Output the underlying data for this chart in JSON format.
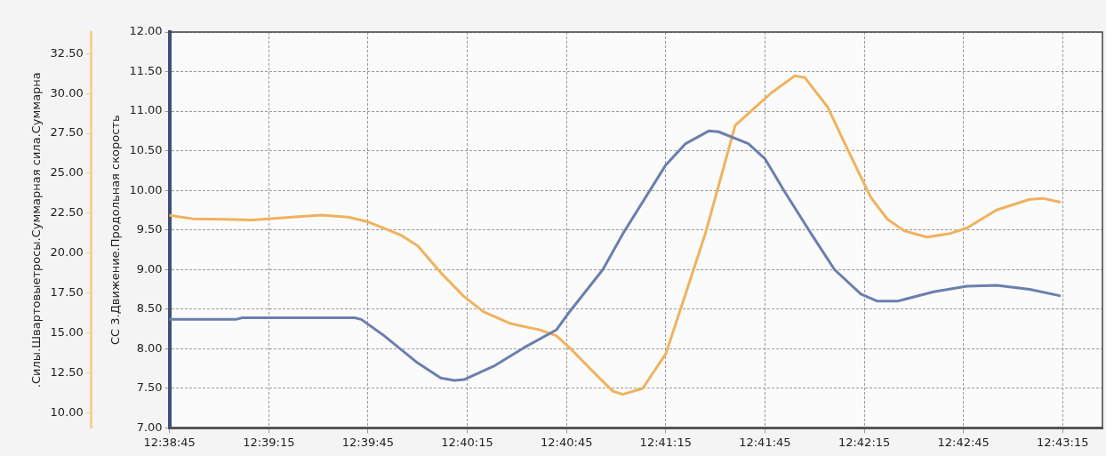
{
  "chart_data": {
    "type": "line",
    "ylabel": "СС 3.Движение.Продольная скорость",
    "y2label": ".Силы.Швартовыетросы.Суммарная сила.Суммарна",
    "xlim": [
      12.64583,
      12.72417
    ],
    "xticks": [
      {
        "value": 12.64583,
        "label": "12:38:45"
      },
      {
        "value": 12.65417,
        "label": "12:39:15"
      },
      {
        "value": 12.6625,
        "label": "12:39:45"
      },
      {
        "value": 12.67083,
        "label": "12:40:15"
      },
      {
        "value": 12.67917,
        "label": "12:40:45"
      },
      {
        "value": 12.6875,
        "label": "12:41:15"
      },
      {
        "value": 12.69583,
        "label": "12:41:45"
      },
      {
        "value": 12.70417,
        "label": "12:42:15"
      },
      {
        "value": 12.7125,
        "label": "12:42:45"
      },
      {
        "value": 12.72083,
        "label": "12:43:15"
      }
    ],
    "ylim": [
      7,
      12
    ],
    "yticks": [
      {
        "value": 7,
        "label": "7.00"
      },
      {
        "value": 7.5,
        "label": "7.50"
      },
      {
        "value": 8,
        "label": "8.00"
      },
      {
        "value": 8.5,
        "label": "8.50"
      },
      {
        "value": 9,
        "label": "9.00"
      },
      {
        "value": 9.5,
        "label": "9.50"
      },
      {
        "value": 10,
        "label": "10.00"
      },
      {
        "value": 10.5,
        "label": "10.50"
      },
      {
        "value": 11,
        "label": "11.00"
      },
      {
        "value": 11.5,
        "label": "11.50"
      },
      {
        "value": 12,
        "label": "12.00"
      }
    ],
    "y2lim": [
      9.05,
      33.85
    ],
    "y2ticks": [
      {
        "value": 10,
        "label": "10.00"
      },
      {
        "value": 12.5,
        "label": "12.50"
      },
      {
        "value": 15,
        "label": "15.00"
      },
      {
        "value": 17.5,
        "label": "17.50"
      },
      {
        "value": 20,
        "label": "20.00"
      },
      {
        "value": 22.5,
        "label": "22.50"
      },
      {
        "value": 25,
        "label": "25.00"
      },
      {
        "value": 27.5,
        "label": "27.50"
      },
      {
        "value": 30,
        "label": "30.00"
      },
      {
        "value": 32.5,
        "label": "32.50"
      }
    ],
    "grid": true,
    "line_style": "solid",
    "series": [
      {
        "color": "#6b7fae",
        "x": [
          12.64583,
          12.65139,
          12.65194,
          12.66139,
          12.66194,
          12.66389,
          12.66667,
          12.66861,
          12.66972,
          12.67056,
          12.67306,
          12.67556,
          12.67833,
          12.67944,
          12.68222,
          12.68389,
          12.6875,
          12.68917,
          12.69111,
          12.69194,
          12.69444,
          12.69583,
          12.6975,
          12.69972,
          12.70167,
          12.70389,
          12.70528,
          12.70694,
          12.71,
          12.71278,
          12.71528,
          12.71806,
          12.72056
        ],
        "values": [
          8.37,
          8.37,
          8.39,
          8.39,
          8.37,
          8.16,
          7.82,
          7.63,
          7.6,
          7.61,
          7.78,
          8.01,
          8.24,
          8.47,
          9.0,
          9.45,
          10.32,
          10.59,
          10.75,
          10.74,
          10.59,
          10.4,
          9.98,
          9.45,
          9.0,
          8.69,
          8.6,
          8.6,
          8.72,
          8.79,
          8.8,
          8.75,
          8.67
        ]
      },
      {
        "color": "#f0b25e",
        "axis": "y2",
        "x": [
          12.64583,
          12.64778,
          12.65278,
          12.65611,
          12.65861,
          12.66083,
          12.6625,
          12.66528,
          12.66667,
          12.66861,
          12.67056,
          12.67222,
          12.67444,
          12.67694,
          12.67833,
          12.67944,
          12.68167,
          12.68306,
          12.68389,
          12.68556,
          12.6875,
          12.68917,
          12.69083,
          12.69194,
          12.69333,
          12.695,
          12.69639,
          12.69833,
          12.69917,
          12.70111,
          12.70278,
          12.70472,
          12.70611,
          12.7075,
          12.70944,
          12.71139,
          12.71278,
          12.71528,
          12.71806,
          12.71917,
          12.72056
        ],
        "values": [
          22.36,
          22.15,
          22.08,
          22.25,
          22.38,
          22.25,
          21.96,
          21.12,
          20.46,
          18.77,
          17.28,
          16.32,
          15.59,
          15.19,
          14.81,
          14.06,
          12.37,
          11.35,
          11.15,
          11.52,
          13.69,
          17.45,
          21.23,
          24.22,
          28.0,
          29.13,
          30.05,
          31.1,
          31.0,
          29.13,
          26.48,
          23.49,
          22.13,
          21.4,
          21.0,
          21.23,
          21.57,
          22.7,
          23.37,
          23.43,
          23.2
        ]
      }
    ]
  }
}
